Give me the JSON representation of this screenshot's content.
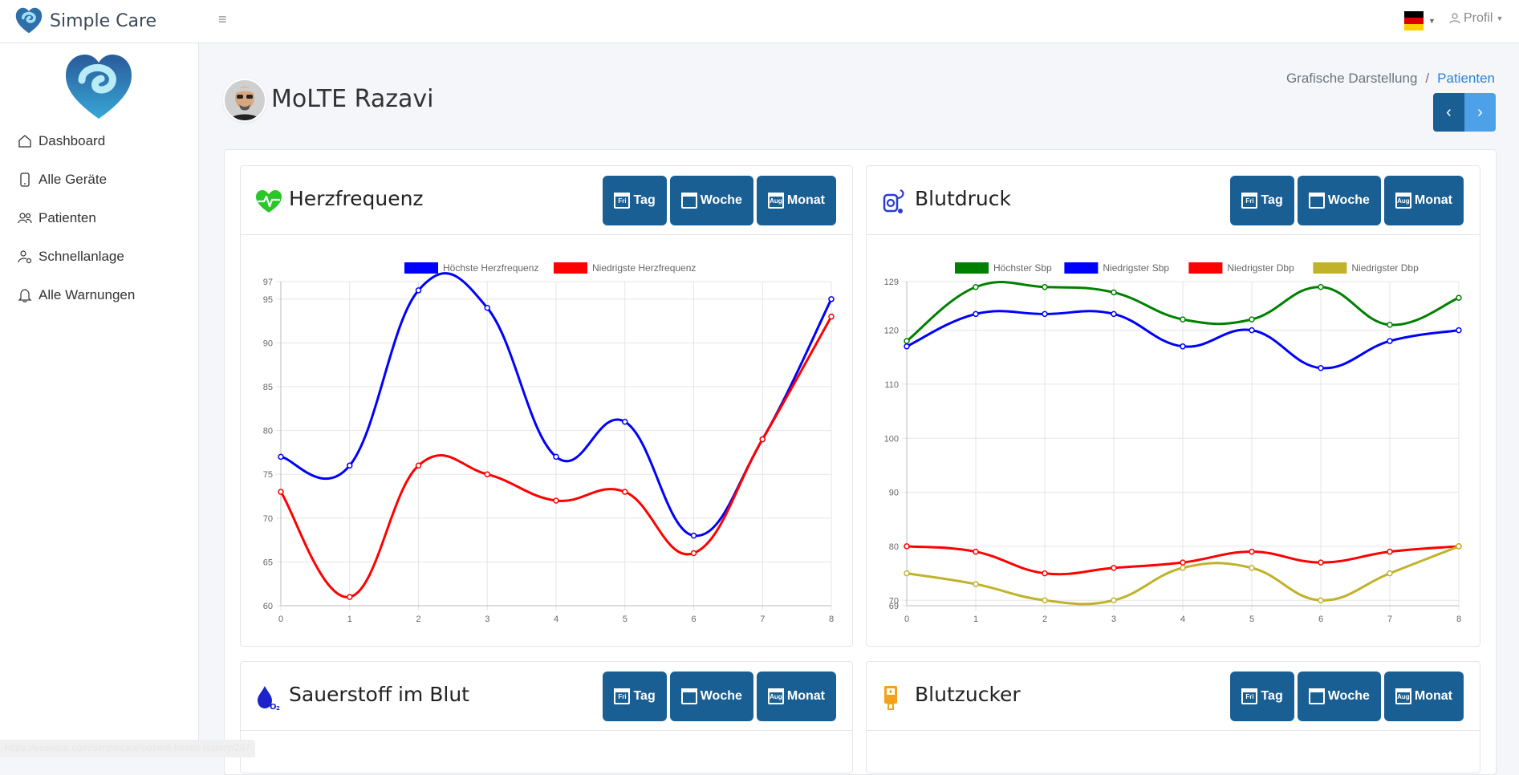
{
  "app": {
    "title": "Simple Care"
  },
  "header": {
    "profile_label": "Profil"
  },
  "sidebar": {
    "items": [
      {
        "label": "Dashboard"
      },
      {
        "label": "Alle Geräte"
      },
      {
        "label": "Patienten"
      },
      {
        "label": "Schnellanlage"
      },
      {
        "label": "Alle Warnungen"
      }
    ]
  },
  "patient": {
    "name": "MoLTE Razavi"
  },
  "breadcrumb": {
    "item1": "Grafische Darstellung",
    "item2": "Patienten"
  },
  "buttons": {
    "day": "Tag",
    "week": "Woche",
    "month": "Monat",
    "day_icon_text": "Fri",
    "month_icon_text": "Aug"
  },
  "cards": [
    {
      "title": "Herzfrequenz",
      "icon": "heart-pulse-icon"
    },
    {
      "title": "Blutdruck",
      "icon": "blood-pressure-icon"
    },
    {
      "title": "Sauerstoff im Blut",
      "icon": "oxygen-drop-icon"
    },
    {
      "title": "Blutzucker",
      "icon": "glucose-meter-icon"
    }
  ],
  "status_url": "https://easysco.com/simplecare/patient-health-history/287",
  "chart_data": [
    {
      "type": "line",
      "title": "",
      "x": [
        0,
        1,
        2,
        3,
        4,
        5,
        6,
        7,
        8
      ],
      "ylim": [
        60,
        97
      ],
      "yticks": [
        60,
        65,
        70,
        75,
        80,
        85,
        90,
        95,
        97
      ],
      "legend": "top",
      "grid": true,
      "series": [
        {
          "name": "Höchste Herzfrequenz",
          "color": "#0000ff",
          "values": [
            77,
            76,
            96,
            94,
            77,
            81,
            68,
            79,
            95
          ]
        },
        {
          "name": "Niedrigste Herzfrequenz",
          "color": "#ff0000",
          "values": [
            73,
            61,
            76,
            75,
            72,
            73,
            66,
            79,
            93
          ]
        }
      ]
    },
    {
      "type": "line",
      "title": "",
      "x": [
        0,
        1,
        2,
        3,
        4,
        5,
        6,
        7,
        8
      ],
      "ylim": [
        69,
        129
      ],
      "yticks": [
        69,
        70,
        80,
        90,
        100,
        110,
        120,
        129
      ],
      "legend": "top",
      "grid": true,
      "series": [
        {
          "name": "Höchster Sbp",
          "color": "#008000",
          "values": [
            118,
            128,
            128,
            127,
            122,
            122,
            128,
            121,
            126
          ]
        },
        {
          "name": "Niedrigster Sbp",
          "color": "#0000ff",
          "values": [
            117,
            123,
            123,
            123,
            117,
            120,
            113,
            118,
            120
          ]
        },
        {
          "name": "Niedrigster Dbp",
          "color": "#ff0000",
          "values": [
            80,
            79,
            75,
            76,
            77,
            79,
            77,
            79,
            80
          ]
        },
        {
          "name": "Niedrigster Dbp",
          "color": "#c0b22a",
          "values": [
            75,
            73,
            70,
            70,
            76,
            76,
            70,
            75,
            80
          ]
        }
      ]
    }
  ]
}
